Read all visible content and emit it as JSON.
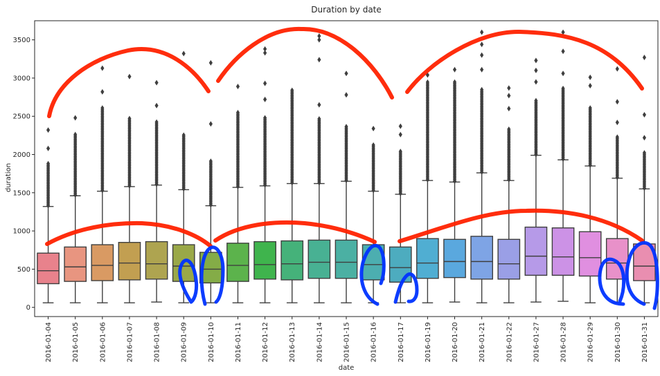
{
  "chart_data": {
    "type": "box",
    "title": "Duration by date",
    "xlabel": "date",
    "ylabel": "duration",
    "ylim": [
      -120,
      3750
    ],
    "yticks": [
      0,
      500,
      1000,
      1500,
      2000,
      2500,
      3000,
      3500
    ],
    "grid": false,
    "categories": [
      "2016-01-04",
      "2016-01-05",
      "2016-01-06",
      "2016-01-07",
      "2016-01-08",
      "2016-01-09",
      "2016-01-10",
      "2016-01-11",
      "2016-01-12",
      "2016-01-13",
      "2016-01-14",
      "2016-01-15",
      "2016-01-16",
      "2016-01-17",
      "2016-01-19",
      "2016-01-20",
      "2016-01-21",
      "2016-01-22",
      "2016-01-27",
      "2016-01-28",
      "2016-01-29",
      "2016-01-30",
      "2016-01-31"
    ],
    "boxes": [
      {
        "q1": 310,
        "median": 480,
        "q3": 710,
        "whisker_low": 60,
        "whisker_high": 1320,
        "outlier_min": 1330,
        "outlier_max": 2320,
        "dense_top": 1900,
        "sparse": [
          2080,
          2320
        ],
        "color": "#e8828c"
      },
      {
        "q1": 340,
        "median": 530,
        "q3": 790,
        "whisker_low": 60,
        "whisker_high": 1460,
        "outlier_min": 1470,
        "outlier_max": 2480,
        "dense_top": 2280,
        "sparse": [
          2480
        ],
        "color": "#e89580"
      },
      {
        "q1": 350,
        "median": 550,
        "q3": 820,
        "whisker_low": 60,
        "whisker_high": 1520,
        "outlier_min": 1530,
        "outlier_max": 3130,
        "dense_top": 2620,
        "sparse": [
          2820,
          3130
        ],
        "color": "#d99a63"
      },
      {
        "q1": 360,
        "median": 580,
        "q3": 850,
        "whisker_low": 60,
        "whisker_high": 1580,
        "outlier_min": 1590,
        "outlier_max": 3020,
        "dense_top": 2470,
        "sparse": [
          3020
        ],
        "color": "#c29f51"
      },
      {
        "q1": 370,
        "median": 570,
        "q3": 860,
        "whisker_low": 70,
        "whisker_high": 1600,
        "outlier_min": 1610,
        "outlier_max": 2940,
        "dense_top": 2430,
        "sparse": [
          2640,
          2940
        ],
        "color": "#aea450"
      },
      {
        "q1": 340,
        "median": 540,
        "q3": 820,
        "whisker_low": 60,
        "whisker_high": 1540,
        "outlier_min": 1550,
        "outlier_max": 3320,
        "dense_top": 2260,
        "sparse": [
          3320
        ],
        "color": "#9aa848"
      },
      {
        "q1": 320,
        "median": 500,
        "q3": 720,
        "whisker_low": 60,
        "whisker_high": 1330,
        "outlier_min": 1340,
        "outlier_max": 3200,
        "dense_top": 1920,
        "sparse": [
          2400,
          3200
        ],
        "color": "#84ac47"
      },
      {
        "q1": 340,
        "median": 550,
        "q3": 840,
        "whisker_low": 60,
        "whisker_high": 1570,
        "outlier_min": 1580,
        "outlier_max": 2890,
        "dense_top": 2560,
        "sparse": [
          2890
        ],
        "color": "#5cb34c"
      },
      {
        "q1": 370,
        "median": 560,
        "q3": 860,
        "whisker_low": 60,
        "whisker_high": 1590,
        "outlier_min": 1600,
        "outlier_max": 3380,
        "dense_top": 2480,
        "sparse": [
          2720,
          2930,
          3330,
          3380
        ],
        "color": "#3fb44d"
      },
      {
        "q1": 360,
        "median": 570,
        "q3": 870,
        "whisker_low": 60,
        "whisker_high": 1620,
        "outlier_min": 1630,
        "outlier_max": 2860,
        "dense_top": 2860,
        "sparse": [],
        "color": "#45b27a"
      },
      {
        "q1": 380,
        "median": 590,
        "q3": 880,
        "whisker_low": 60,
        "whisker_high": 1620,
        "outlier_min": 1630,
        "outlier_max": 3550,
        "dense_top": 2470,
        "sparse": [
          2650,
          3240,
          3500,
          3550
        ],
        "color": "#48b193"
      },
      {
        "q1": 380,
        "median": 590,
        "q3": 880,
        "whisker_low": 60,
        "whisker_high": 1650,
        "outlier_min": 1660,
        "outlier_max": 3060,
        "dense_top": 2380,
        "sparse": [
          2780,
          3060
        ],
        "color": "#4bb0a3"
      },
      {
        "q1": 360,
        "median": 560,
        "q3": 820,
        "whisker_low": 60,
        "whisker_high": 1520,
        "outlier_min": 1530,
        "outlier_max": 2340,
        "dense_top": 2130,
        "sparse": [
          2340
        ],
        "color": "#4caeb0"
      },
      {
        "q1": 330,
        "median": 520,
        "q3": 790,
        "whisker_low": 60,
        "whisker_high": 1480,
        "outlier_min": 1490,
        "outlier_max": 2370,
        "dense_top": 2050,
        "sparse": [
          2260,
          2370
        ],
        "color": "#4dacbf"
      },
      {
        "q1": 380,
        "median": 580,
        "q3": 900,
        "whisker_low": 60,
        "whisker_high": 1660,
        "outlier_min": 1670,
        "outlier_max": 3040,
        "dense_top": 2950,
        "sparse": [
          3040
        ],
        "color": "#50aed2"
      },
      {
        "q1": 390,
        "median": 600,
        "q3": 890,
        "whisker_low": 70,
        "whisker_high": 1640,
        "outlier_min": 1650,
        "outlier_max": 3110,
        "dense_top": 2950,
        "sparse": [
          3110
        ],
        "color": "#5aa8de"
      },
      {
        "q1": 370,
        "median": 600,
        "q3": 930,
        "whisker_low": 60,
        "whisker_high": 1760,
        "outlier_min": 1770,
        "outlier_max": 3600,
        "dense_top": 2860,
        "sparse": [
          3110,
          3300,
          3440,
          3600
        ],
        "color": "#7ea4e5"
      },
      {
        "q1": 370,
        "median": 570,
        "q3": 890,
        "whisker_low": 60,
        "whisker_high": 1660,
        "outlier_min": 1670,
        "outlier_max": 2870,
        "dense_top": 2330,
        "sparse": [
          2600,
          2770,
          2870
        ],
        "color": "#9a9fe6"
      },
      {
        "q1": 420,
        "median": 670,
        "q3": 1050,
        "whisker_low": 70,
        "whisker_high": 1990,
        "outlier_min": 2000,
        "outlier_max": 3230,
        "dense_top": 2720,
        "sparse": [
          2950,
          3100,
          3230
        ],
        "color": "#b69ae8"
      },
      {
        "q1": 420,
        "median": 660,
        "q3": 1040,
        "whisker_low": 80,
        "whisker_high": 1930,
        "outlier_min": 1940,
        "outlier_max": 3600,
        "dense_top": 2880,
        "sparse": [
          3060,
          3350,
          3600
        ],
        "color": "#cc92e6"
      },
      {
        "q1": 410,
        "median": 650,
        "q3": 990,
        "whisker_low": 60,
        "whisker_high": 1850,
        "outlier_min": 1860,
        "outlier_max": 3010,
        "dense_top": 2620,
        "sparse": [
          2900,
          3010
        ],
        "color": "#e08fe0"
      },
      {
        "q1": 370,
        "median": 580,
        "q3": 900,
        "whisker_low": 60,
        "whisker_high": 1690,
        "outlier_min": 1700,
        "outlier_max": 3120,
        "dense_top": 2240,
        "sparse": [
          2420,
          2690,
          3120
        ],
        "color": "#e891c9"
      },
      {
        "q1": 350,
        "median": 540,
        "q3": 830,
        "whisker_low": 60,
        "whisker_high": 1550,
        "outlier_min": 1560,
        "outlier_max": 3270,
        "dense_top": 2040,
        "sparse": [
          2220,
          2520,
          3270
        ],
        "color": "#e98eb0"
      }
    ],
    "annotations": {
      "red_color": "#ff2200",
      "blue_color": "#0033ff"
    }
  }
}
